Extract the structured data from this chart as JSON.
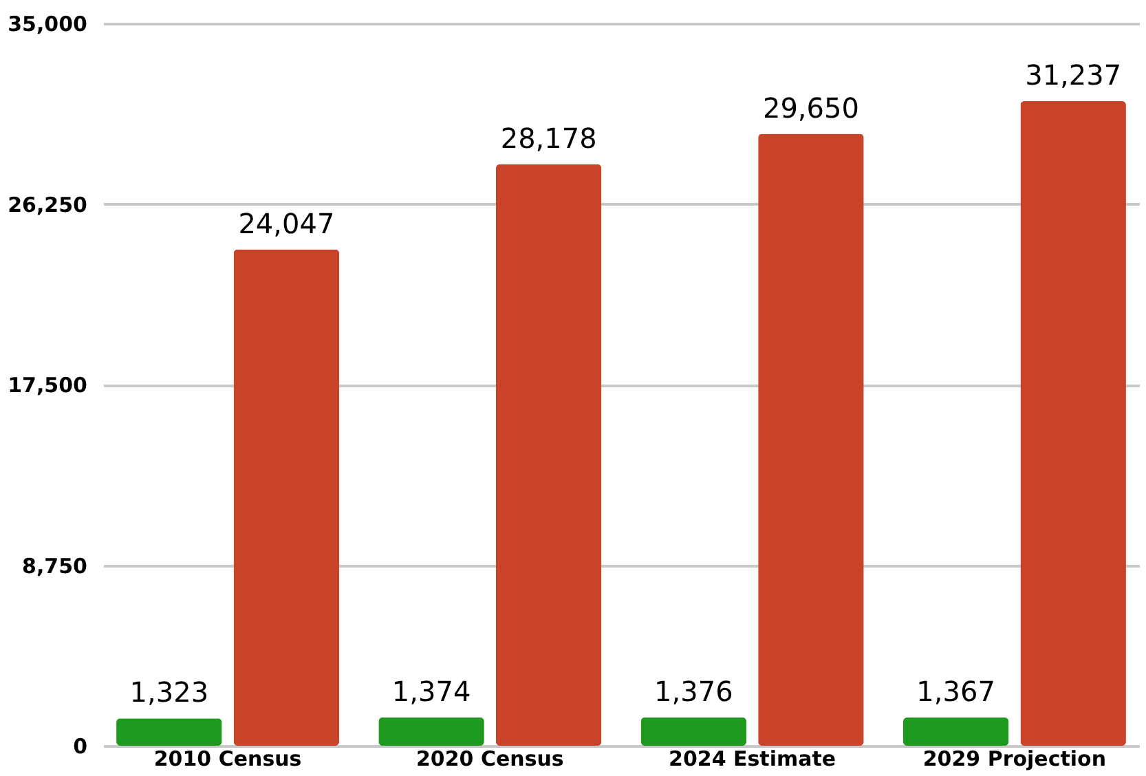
{
  "chart_data": {
    "type": "bar",
    "categories": [
      "2010 Census",
      "2020 Census",
      "2024 Estimate",
      "2029 Projection"
    ],
    "series": [
      {
        "color": "#1e9a1e",
        "values": [
          1323,
          1374,
          1376,
          1367
        ],
        "value_labels": [
          "1,323",
          "1,374",
          "1,376",
          "1,367"
        ]
      },
      {
        "color": "#c9432b",
        "values": [
          24047,
          28178,
          29650,
          31237
        ],
        "value_labels": [
          "24,047",
          "28,178",
          "29,650",
          "31,237"
        ]
      }
    ],
    "ylim": [
      0,
      35000
    ],
    "yticks": [
      0,
      {
        "value": 8750,
        "label": "8,750"
      },
      {
        "value": 17500,
        "label": "17,500"
      },
      {
        "value": 26250,
        "label": "26,250"
      },
      {
        "value": 35000,
        "label": "35,000"
      }
    ],
    "grid": "y",
    "legend": false
  }
}
